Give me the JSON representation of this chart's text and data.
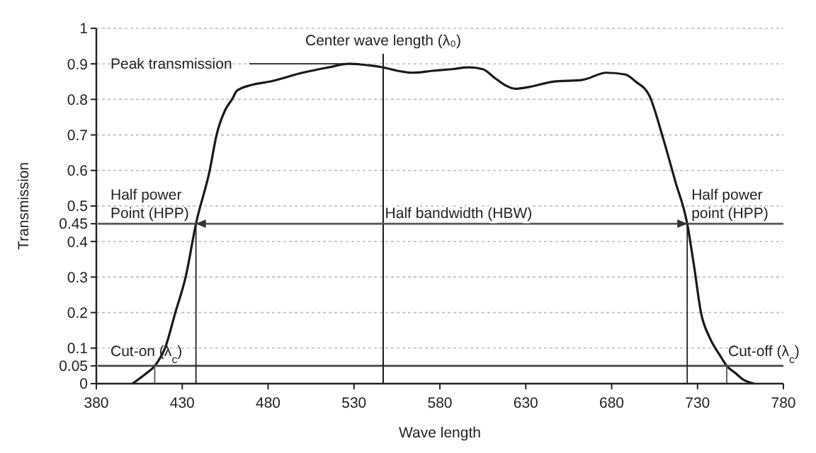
{
  "chart_data": {
    "type": "line",
    "xlabel": "Wave length",
    "ylabel": "Transmission",
    "x": [
      401,
      408,
      414,
      420,
      426,
      432,
      438,
      446,
      450,
      455,
      459,
      462,
      470,
      481,
      500,
      515,
      527,
      540,
      547,
      556,
      564,
      575,
      587,
      597,
      605,
      612,
      618,
      624,
      632,
      646,
      663,
      677,
      688,
      694,
      702,
      710,
      717,
      724,
      728,
      732,
      737,
      743,
      747,
      752,
      757,
      763
    ],
    "series": [
      {
        "color": "#1a1a1a",
        "values": [
          0,
          0.025,
          0.05,
          0.1,
          0.2,
          0.3,
          0.45,
          0.6,
          0.7,
          0.77,
          0.8,
          0.825,
          0.84,
          0.85,
          0.875,
          0.89,
          0.9,
          0.895,
          0.89,
          0.88,
          0.875,
          0.88,
          0.885,
          0.89,
          0.885,
          0.86,
          0.84,
          0.83,
          0.835,
          0.85,
          0.855,
          0.875,
          0.87,
          0.85,
          0.81,
          0.69,
          0.57,
          0.45,
          0.33,
          0.2,
          0.13,
          0.08,
          0.05,
          0.03,
          0.01,
          0
        ]
      }
    ],
    "xlim": [
      380,
      780
    ],
    "xticks": [
      380,
      430,
      480,
      530,
      580,
      630,
      680,
      730,
      780
    ],
    "ylim": [
      0,
      1
    ],
    "yticks": [
      0,
      0.05,
      0.1,
      0.2,
      0.3,
      0.4,
      0.45,
      0.5,
      0.6,
      0.7,
      0.8,
      0.9,
      1
    ],
    "grid": "y",
    "marker": "none",
    "line_style": "solid",
    "ref_lines": [
      {
        "axis": "y",
        "value": 0.45,
        "color": "#555555"
      },
      {
        "axis": "y",
        "value": 0.05,
        "color": "#444444"
      },
      {
        "axis": "x",
        "value": 547,
        "label": "Center wave length (λ₀)",
        "color": "#1a1a1a"
      }
    ],
    "annotations": [
      {
        "text": "Peak transmission",
        "x": 527,
        "y": 0.9
      },
      {
        "text": "Half power Point (HPP)",
        "x": 438,
        "y": 0.45
      },
      {
        "text": "Half power point (HPP)",
        "x": 724,
        "y": 0.45
      },
      {
        "text": "Cut-on (λ$_{c}$)",
        "x": 414,
        "y": 0.05
      },
      {
        "text": "Cut-off (λ$_{c}$)",
        "x": 747,
        "y": 0.05
      },
      "Half bandwidth (HBW)"
    ]
  }
}
